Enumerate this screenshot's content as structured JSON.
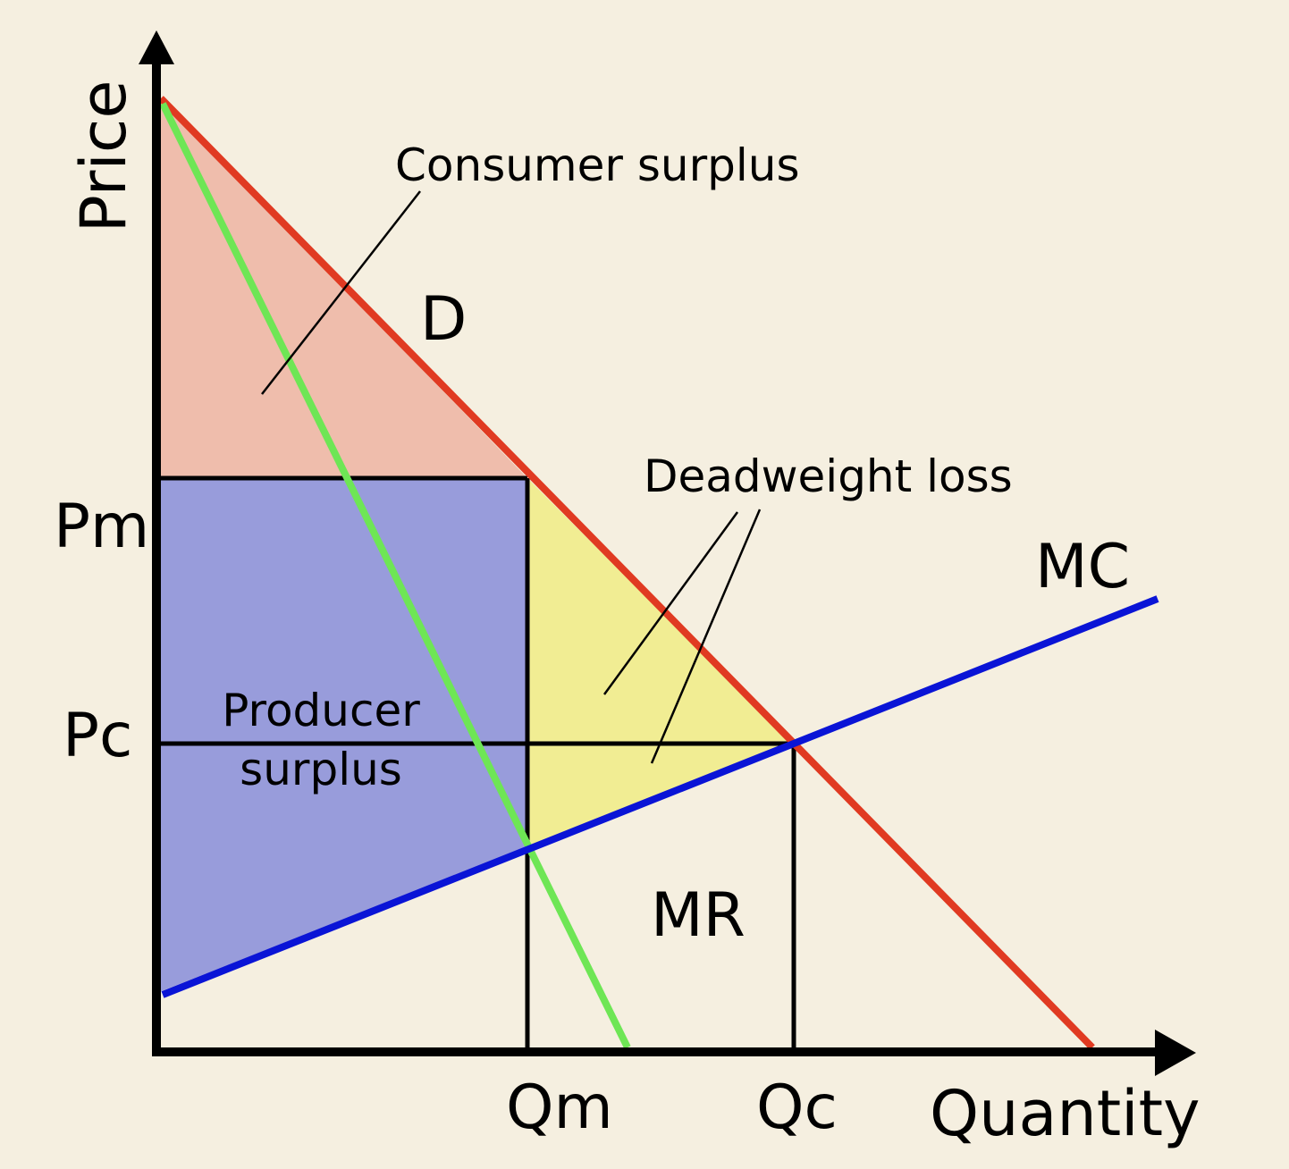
{
  "axes": {
    "y_label": "Price",
    "x_label": "Quantity"
  },
  "price_levels": {
    "monopoly": "Pm",
    "competitive": "Pc"
  },
  "quantity_levels": {
    "monopoly": "Qm",
    "competitive": "Qc"
  },
  "curves": {
    "demand": {
      "label": "D",
      "color": "#e03a22"
    },
    "marginal_cost": {
      "label": "MC",
      "color": "#0a14d6"
    },
    "marginal_revenue": {
      "label": "MR",
      "color": "#6ee655"
    }
  },
  "regions": {
    "consumer_surplus": {
      "label": "Consumer surplus",
      "color": "#efbdac"
    },
    "producer_surplus": {
      "label_line1": "Producer",
      "label_line2": "surplus",
      "color": "#989cdb"
    },
    "deadweight_loss": {
      "label": "Deadweight loss",
      "color": "#f1ed93"
    }
  },
  "colors": {
    "background": "#f5efe0",
    "axis": "#000000"
  }
}
